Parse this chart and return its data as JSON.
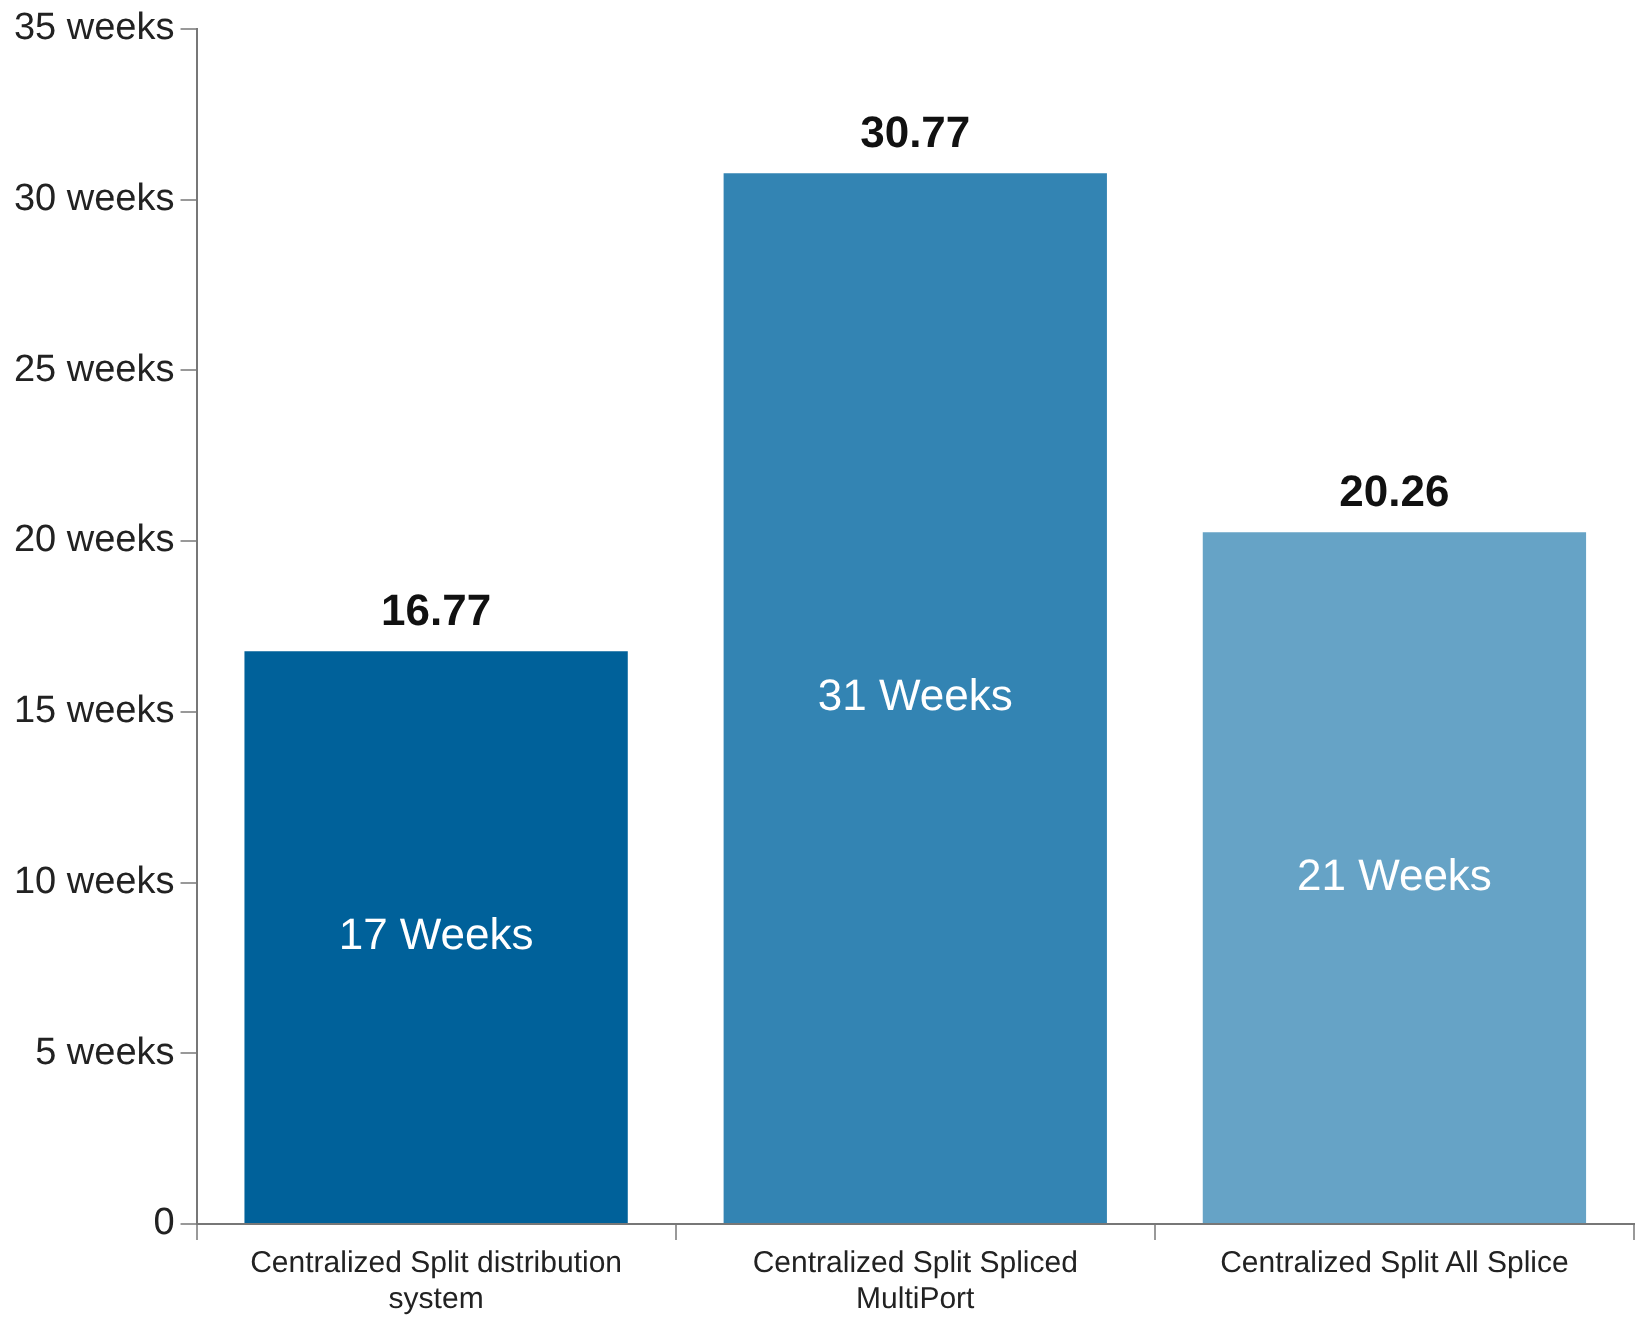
{
  "chart_data": {
    "type": "bar",
    "categories": [
      "Centralized Split distribution system",
      "Centralized Split Spliced MultiPort",
      "Centralized Split All Splice"
    ],
    "values": [
      16.77,
      30.77,
      20.26
    ],
    "colors": [
      "#00619a",
      "#3384b3",
      "#66a3c6"
    ],
    "ylim": [
      0,
      35
    ],
    "yticks": [
      {
        "value": 0,
        "label": "0"
      },
      {
        "value": 5,
        "label": "5 weeks"
      },
      {
        "value": 10,
        "label": "10 weeks"
      },
      {
        "value": 15,
        "label": "15 weeks"
      },
      {
        "value": 20,
        "label": "20 weeks"
      },
      {
        "value": 25,
        "label": "25 weeks"
      },
      {
        "value": 30,
        "label": "30 weeks"
      },
      {
        "value": 35,
        "label": "35 weeks"
      }
    ],
    "grid": false,
    "legend": false,
    "data_labels": true,
    "annotations": [
      "17 Weeks",
      "31 Weeks",
      "21 Weeks"
    ]
  }
}
